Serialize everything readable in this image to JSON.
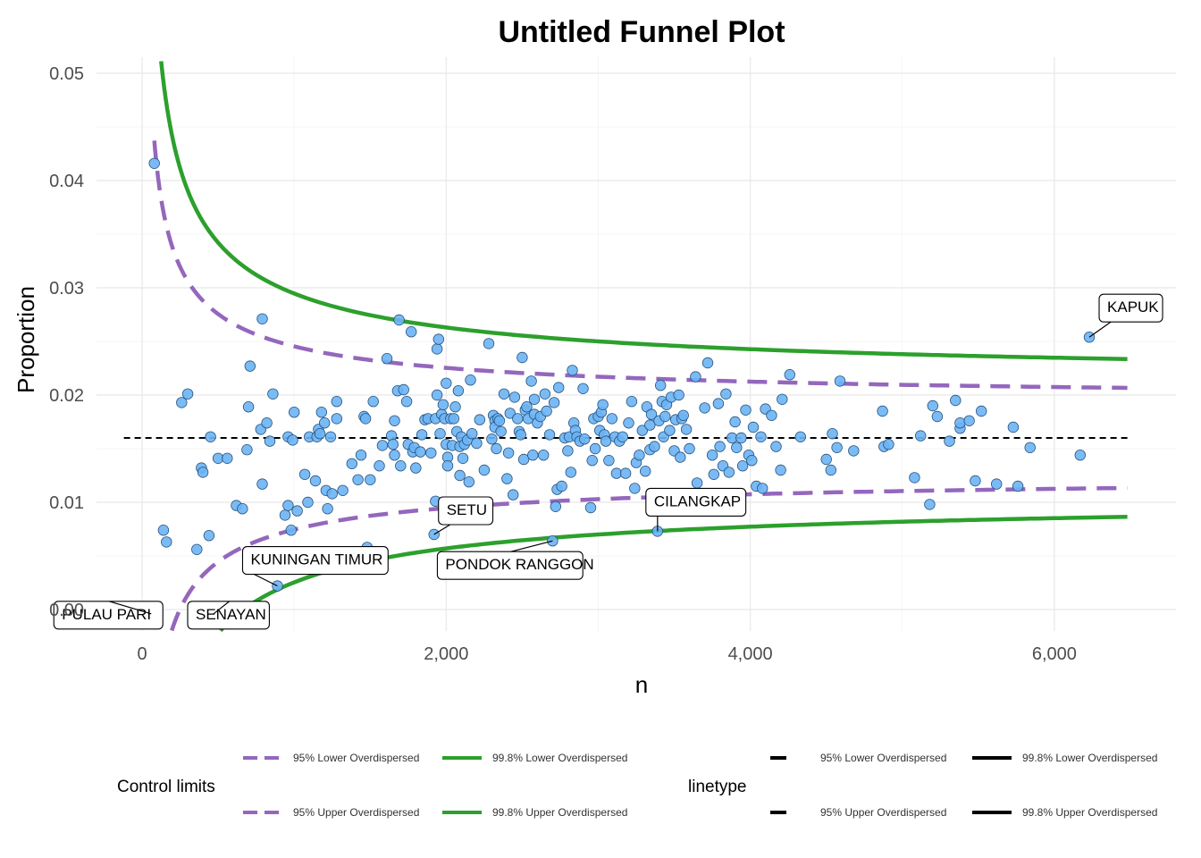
{
  "chart_data": {
    "type": "scatter",
    "title": "Untitled Funnel Plot",
    "xlabel": "n",
    "ylabel": "Proportion",
    "xlim": [
      -300,
      6800
    ],
    "ylim": [
      -0.002,
      0.0515
    ],
    "x_ticks": [
      0,
      2000,
      4000,
      6000
    ],
    "x_tick_labels": [
      "0",
      "2,000",
      "4,000",
      "6,000"
    ],
    "y_ticks": [
      0.0,
      0.01,
      0.02,
      0.03,
      0.04,
      0.05
    ],
    "y_tick_labels": [
      "0.00",
      "0.01",
      "0.02",
      "0.03",
      "0.04",
      "0.05"
    ],
    "grid": true,
    "target": 0.016,
    "control_limits": {
      "n_range": [
        80,
        6500
      ],
      "z95": 1.96,
      "z998": 3.09,
      "base_proportion": 0.016,
      "overdispersion_tau": 0.0018
    },
    "colors": {
      "limit_95": "#9467bd",
      "limit_998": "#2ca02c",
      "target": "#000000",
      "points": "#6cb4f5",
      "points_stroke": "#24507a"
    },
    "points": [
      [
        80,
        0.0416
      ],
      [
        140,
        0.0074
      ],
      [
        160,
        0.0063
      ],
      [
        260,
        0.0193
      ],
      [
        300,
        0.0201
      ],
      [
        360,
        0.0056
      ],
      [
        390,
        0.0132
      ],
      [
        400,
        0.0128
      ],
      [
        440,
        0.0069
      ],
      [
        450,
        0.0161
      ],
      [
        500,
        0.0141
      ],
      [
        560,
        0.0141
      ],
      [
        620,
        0.0097
      ],
      [
        660,
        0.0094
      ],
      [
        690,
        0.0149
      ],
      [
        700,
        0.0189
      ],
      [
        710,
        0.0227
      ],
      [
        780,
        0.0168
      ],
      [
        790,
        0.0117
      ],
      [
        790,
        0.0271
      ],
      [
        820,
        0.0174
      ],
      [
        840,
        0.0157
      ],
      [
        860,
        0.0201
      ],
      [
        890,
        0.0022
      ],
      [
        940,
        0.0088
      ],
      [
        960,
        0.0097
      ],
      [
        960,
        0.0161
      ],
      [
        980,
        0.0074
      ],
      [
        990,
        0.0158
      ],
      [
        1000,
        0.0184
      ],
      [
        1020,
        0.0092
      ],
      [
        1070,
        0.0126
      ],
      [
        1090,
        0.01
      ],
      [
        1100,
        0.0161
      ],
      [
        1140,
        0.012
      ],
      [
        1150,
        0.0161
      ],
      [
        1160,
        0.0168
      ],
      [
        1170,
        0.0164
      ],
      [
        1180,
        0.0184
      ],
      [
        1200,
        0.0174
      ],
      [
        1210,
        0.0111
      ],
      [
        1220,
        0.0094
      ],
      [
        1240,
        0.0161
      ],
      [
        1250,
        0.0108
      ],
      [
        1280,
        0.0178
      ],
      [
        1280,
        0.0194
      ],
      [
        1320,
        0.0111
      ],
      [
        1380,
        0.0136
      ],
      [
        1420,
        0.0121
      ],
      [
        1440,
        0.0144
      ],
      [
        1460,
        0.018
      ],
      [
        1470,
        0.0178
      ],
      [
        1480,
        0.0058
      ],
      [
        1500,
        0.0121
      ],
      [
        1520,
        0.0194
      ],
      [
        1560,
        0.0134
      ],
      [
        1580,
        0.0153
      ],
      [
        1610,
        0.0234
      ],
      [
        1640,
        0.0162
      ],
      [
        1650,
        0.0154
      ],
      [
        1660,
        0.0144
      ],
      [
        1660,
        0.0176
      ],
      [
        1680,
        0.0204
      ],
      [
        1690,
        0.027
      ],
      [
        1700,
        0.0134
      ],
      [
        1720,
        0.0205
      ],
      [
        1740,
        0.0194
      ],
      [
        1750,
        0.0154
      ],
      [
        1770,
        0.0259
      ],
      [
        1780,
        0.0147
      ],
      [
        1790,
        0.0151
      ],
      [
        1800,
        0.0132
      ],
      [
        1830,
        0.0147
      ],
      [
        1840,
        0.0163
      ],
      [
        1860,
        0.0177
      ],
      [
        1880,
        0.0178
      ],
      [
        1900,
        0.0146
      ],
      [
        1920,
        0.007
      ],
      [
        1930,
        0.0101
      ],
      [
        1930,
        0.0178
      ],
      [
        1940,
        0.02
      ],
      [
        1940,
        0.0243
      ],
      [
        1950,
        0.0252
      ],
      [
        1960,
        0.0164
      ],
      [
        1970,
        0.0182
      ],
      [
        1980,
        0.0191
      ],
      [
        1990,
        0.0178
      ],
      [
        2000,
        0.0154
      ],
      [
        2000,
        0.0211
      ],
      [
        2010,
        0.0142
      ],
      [
        2010,
        0.0134
      ],
      [
        2030,
        0.0178
      ],
      [
        2040,
        0.0153
      ],
      [
        2050,
        0.0178
      ],
      [
        2060,
        0.0189
      ],
      [
        2070,
        0.0166
      ],
      [
        2080,
        0.0204
      ],
      [
        2090,
        0.0125
      ],
      [
        2090,
        0.0152
      ],
      [
        2100,
        0.0161
      ],
      [
        2110,
        0.0141
      ],
      [
        2120,
        0.0154
      ],
      [
        2140,
        0.0158
      ],
      [
        2150,
        0.0119
      ],
      [
        2160,
        0.0214
      ],
      [
        2170,
        0.0164
      ],
      [
        2200,
        0.0155
      ],
      [
        2220,
        0.0177
      ],
      [
        2250,
        0.013
      ],
      [
        2280,
        0.0248
      ],
      [
        2300,
        0.0159
      ],
      [
        2310,
        0.0181
      ],
      [
        2320,
        0.0176
      ],
      [
        2320,
        0.017
      ],
      [
        2330,
        0.015
      ],
      [
        2340,
        0.0178
      ],
      [
        2350,
        0.0176
      ],
      [
        2360,
        0.0166
      ],
      [
        2380,
        0.0201
      ],
      [
        2400,
        0.0122
      ],
      [
        2410,
        0.0146
      ],
      [
        2420,
        0.0183
      ],
      [
        2440,
        0.0107
      ],
      [
        2450,
        0.0198
      ],
      [
        2470,
        0.0178
      ],
      [
        2480,
        0.0166
      ],
      [
        2490,
        0.0163
      ],
      [
        2500,
        0.0235
      ],
      [
        2510,
        0.014
      ],
      [
        2520,
        0.0186
      ],
      [
        2530,
        0.0189
      ],
      [
        2540,
        0.0178
      ],
      [
        2560,
        0.0213
      ],
      [
        2570,
        0.0144
      ],
      [
        2580,
        0.0196
      ],
      [
        2580,
        0.0182
      ],
      [
        2600,
        0.0174
      ],
      [
        2620,
        0.018
      ],
      [
        2640,
        0.0144
      ],
      [
        2650,
        0.0201
      ],
      [
        2660,
        0.0185
      ],
      [
        2680,
        0.0163
      ],
      [
        2700,
        0.0064
      ],
      [
        2710,
        0.0193
      ],
      [
        2720,
        0.0096
      ],
      [
        2730,
        0.0112
      ],
      [
        2740,
        0.0207
      ],
      [
        2760,
        0.0115
      ],
      [
        2780,
        0.016
      ],
      [
        2800,
        0.0148
      ],
      [
        2810,
        0.0161
      ],
      [
        2820,
        0.0128
      ],
      [
        2830,
        0.0223
      ],
      [
        2840,
        0.0174
      ],
      [
        2850,
        0.0167
      ],
      [
        2860,
        0.0161
      ],
      [
        2880,
        0.0157
      ],
      [
        2900,
        0.0206
      ],
      [
        2910,
        0.0159
      ],
      [
        2950,
        0.0095
      ],
      [
        2960,
        0.0139
      ],
      [
        2970,
        0.0178
      ],
      [
        2980,
        0.015
      ],
      [
        3000,
        0.018
      ],
      [
        3010,
        0.0167
      ],
      [
        3020,
        0.0184
      ],
      [
        3030,
        0.0191
      ],
      [
        3040,
        0.0163
      ],
      [
        3050,
        0.0157
      ],
      [
        3070,
        0.0139
      ],
      [
        3090,
        0.0178
      ],
      [
        3110,
        0.0161
      ],
      [
        3120,
        0.0127
      ],
      [
        3140,
        0.0157
      ],
      [
        3160,
        0.0161
      ],
      [
        3180,
        0.0127
      ],
      [
        3200,
        0.0174
      ],
      [
        3220,
        0.0194
      ],
      [
        3240,
        0.0113
      ],
      [
        3250,
        0.0137
      ],
      [
        3270,
        0.0144
      ],
      [
        3290,
        0.0167
      ],
      [
        3310,
        0.0129
      ],
      [
        3320,
        0.0189
      ],
      [
        3340,
        0.0149
      ],
      [
        3340,
        0.0172
      ],
      [
        3350,
        0.0182
      ],
      [
        3370,
        0.0152
      ],
      [
        3390,
        0.0073
      ],
      [
        3400,
        0.0176
      ],
      [
        3410,
        0.0209
      ],
      [
        3420,
        0.0194
      ],
      [
        3430,
        0.0161
      ],
      [
        3440,
        0.018
      ],
      [
        3450,
        0.0191
      ],
      [
        3470,
        0.0167
      ],
      [
        3480,
        0.0198
      ],
      [
        3500,
        0.0148
      ],
      [
        3510,
        0.0177
      ],
      [
        3530,
        0.02
      ],
      [
        3540,
        0.0142
      ],
      [
        3550,
        0.0178
      ],
      [
        3560,
        0.0181
      ],
      [
        3580,
        0.0168
      ],
      [
        3600,
        0.015
      ],
      [
        3640,
        0.0217
      ],
      [
        3650,
        0.0118
      ],
      [
        3700,
        0.0188
      ],
      [
        3720,
        0.023
      ],
      [
        3750,
        0.0144
      ],
      [
        3760,
        0.0126
      ],
      [
        3790,
        0.0192
      ],
      [
        3800,
        0.0152
      ],
      [
        3820,
        0.0134
      ],
      [
        3840,
        0.0201
      ],
      [
        3860,
        0.0128
      ],
      [
        3880,
        0.016
      ],
      [
        3900,
        0.0175
      ],
      [
        3910,
        0.0151
      ],
      [
        3940,
        0.016
      ],
      [
        3950,
        0.0134
      ],
      [
        3970,
        0.0186
      ],
      [
        3990,
        0.0144
      ],
      [
        4010,
        0.0139
      ],
      [
        4020,
        0.017
      ],
      [
        4040,
        0.0115
      ],
      [
        4070,
        0.0161
      ],
      [
        4080,
        0.0113
      ],
      [
        4100,
        0.0187
      ],
      [
        4140,
        0.0181
      ],
      [
        4170,
        0.0152
      ],
      [
        4200,
        0.013
      ],
      [
        4210,
        0.0196
      ],
      [
        4260,
        0.0219
      ],
      [
        4330,
        0.0161
      ],
      [
        4500,
        0.014
      ],
      [
        4530,
        0.013
      ],
      [
        4540,
        0.0164
      ],
      [
        4570,
        0.0151
      ],
      [
        4590,
        0.0213
      ],
      [
        4680,
        0.0148
      ],
      [
        4870,
        0.0185
      ],
      [
        4880,
        0.0152
      ],
      [
        4910,
        0.0154
      ],
      [
        5080,
        0.0123
      ],
      [
        5120,
        0.0162
      ],
      [
        5180,
        0.0098
      ],
      [
        5200,
        0.019
      ],
      [
        5230,
        0.018
      ],
      [
        5310,
        0.0157
      ],
      [
        5350,
        0.0195
      ],
      [
        5380,
        0.0169
      ],
      [
        5380,
        0.0174
      ],
      [
        5440,
        0.0176
      ],
      [
        5480,
        0.012
      ],
      [
        5520,
        0.0185
      ],
      [
        5620,
        0.0117
      ],
      [
        5730,
        0.017
      ],
      [
        5760,
        0.0115
      ],
      [
        5840,
        0.0151
      ],
      [
        6170,
        0.0144
      ],
      [
        6230,
        0.0254
      ]
    ],
    "labelled_points": [
      {
        "text": "KAPUK",
        "x": 6230,
        "y": 0.0254
      },
      {
        "text": "SETU",
        "x": 1920,
        "y": 0.007
      },
      {
        "text": "CILANGKAP",
        "x": 3390,
        "y": 0.0073
      },
      {
        "text": "PONDOK RANGGON",
        "x": 2700,
        "y": 0.0064
      },
      {
        "text": "KUNINGAN TIMUR",
        "x": 890,
        "y": 0.0022
      },
      {
        "text": "PULAU PARI",
        "x": 60,
        "y": -0.0004
      },
      {
        "text": "SENAYAN",
        "x": 470,
        "y": -0.0004
      }
    ],
    "legend": {
      "control_limits_title": "Control limits",
      "control_limits_items": [
        {
          "label": "95% Lower Overdispersed",
          "color": "#9467bd",
          "dash": true
        },
        {
          "label": "99.8% Lower Overdispersed",
          "color": "#2ca02c",
          "dash": false
        },
        {
          "label": "95% Upper Overdispersed",
          "color": "#9467bd",
          "dash": true
        },
        {
          "label": "99.8% Upper Overdispersed",
          "color": "#2ca02c",
          "dash": false
        }
      ],
      "linetype_title": "linetype",
      "linetype_items": [
        {
          "label": "95% Lower Overdispersed",
          "style": "dashed"
        },
        {
          "label": "99.8% Lower Overdispersed",
          "style": "solid"
        },
        {
          "label": "95% Upper Overdispersed",
          "style": "dashed"
        },
        {
          "label": "99.8% Upper Overdispersed",
          "style": "solid"
        }
      ],
      "position": "bottom"
    }
  }
}
